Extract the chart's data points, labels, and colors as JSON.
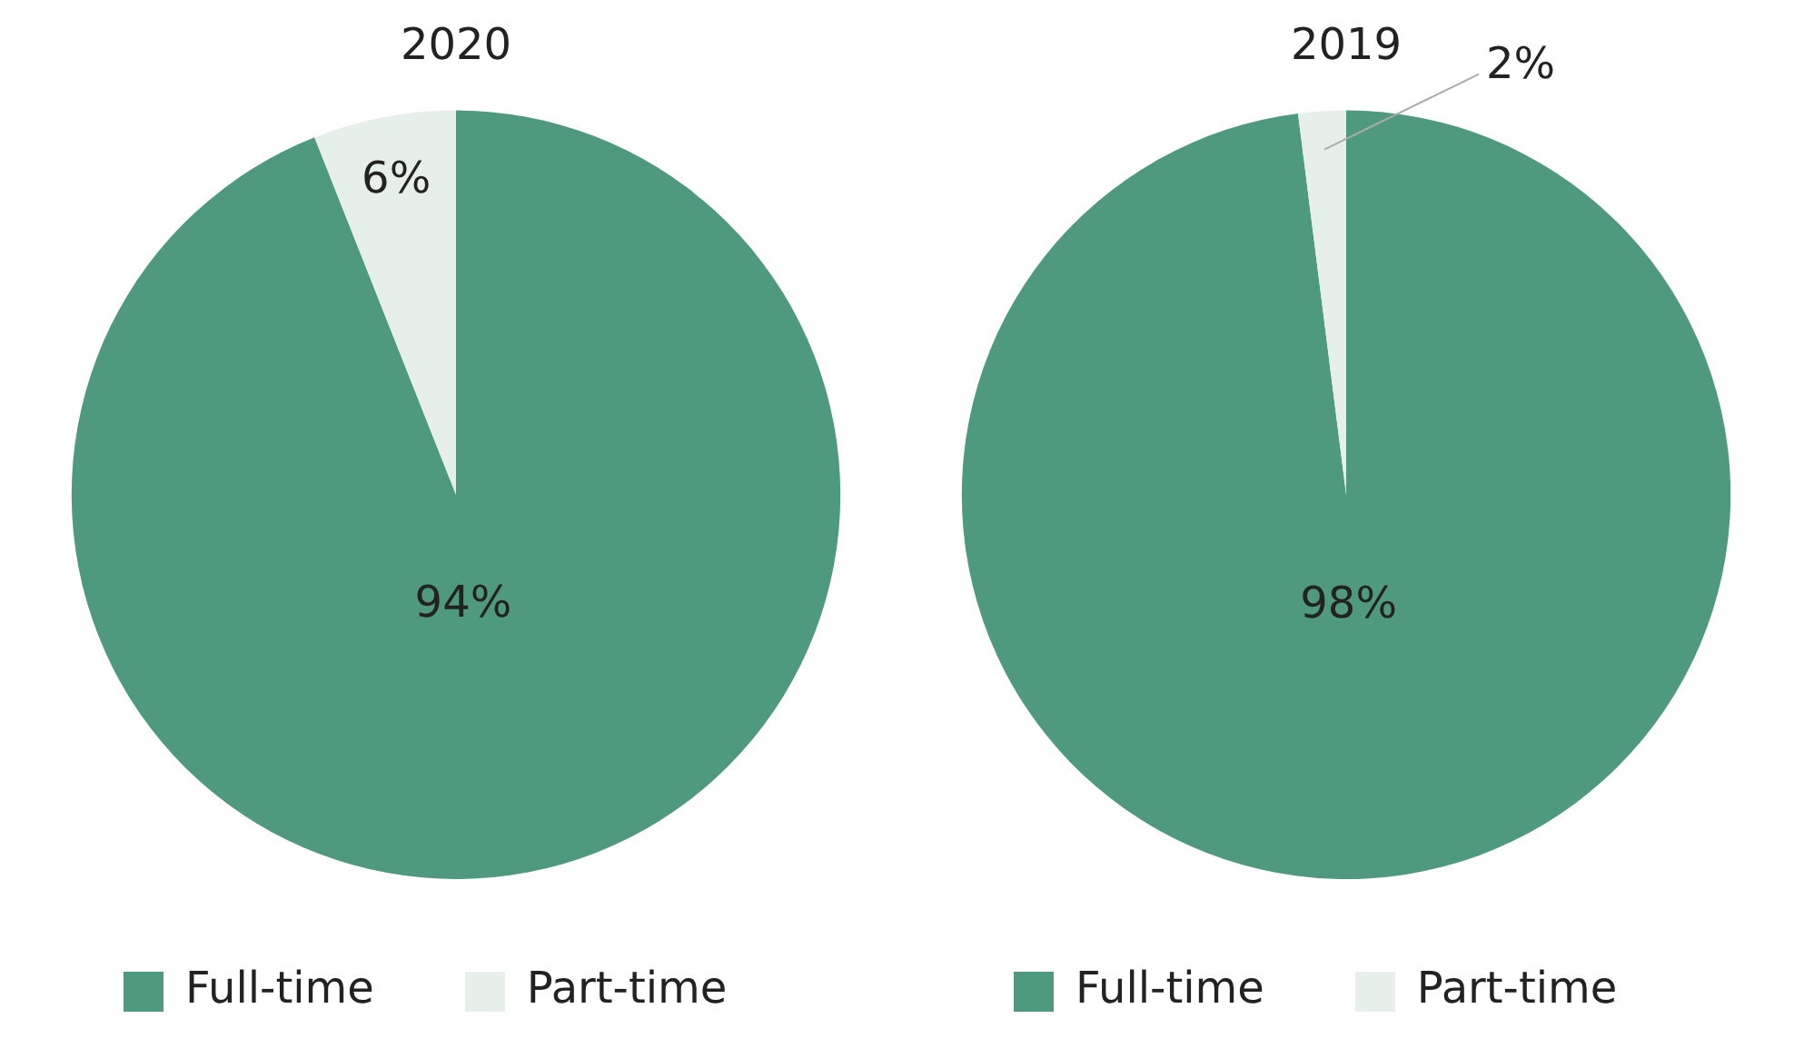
{
  "chart_data": [
    {
      "type": "pie",
      "title": "2020",
      "categories": [
        "Full-time",
        "Part-time"
      ],
      "values": [
        94,
        6
      ],
      "colors": [
        "#4f9a7f",
        "#e6efea"
      ],
      "value_labels": [
        "94%",
        "6%"
      ],
      "legend": "bottom left"
    },
    {
      "type": "pie",
      "title": "2019",
      "categories": [
        "Full-time",
        "Part-time"
      ],
      "values": [
        98,
        2
      ],
      "colors": [
        "#4f9a7f",
        "#e6efea"
      ],
      "value_labels": [
        "98%",
        "2%"
      ],
      "legend": "bottom left"
    }
  ]
}
